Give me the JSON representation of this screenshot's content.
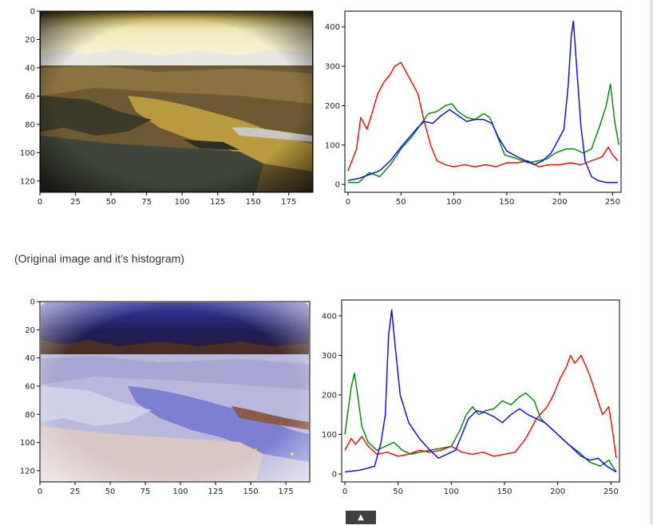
{
  "caption": "(Original image and it’s histogram)",
  "scroll_top_icon": "arrow-up-icon",
  "scroll_top_glyph": "▲",
  "chart_data": [
    {
      "type": "image",
      "image": "original-landscape",
      "x_ticks": [
        "0",
        "25",
        "50",
        "75",
        "100",
        "125",
        "150",
        "175"
      ],
      "y_ticks": [
        "0",
        "20",
        "40",
        "60",
        "80",
        "100",
        "120"
      ],
      "xlim": [
        0,
        192
      ],
      "ylim": [
        128,
        0
      ]
    },
    {
      "type": "line",
      "x_ticks": [
        "0",
        "50",
        "100",
        "150",
        "200",
        "250"
      ],
      "y_ticks": [
        "0",
        "100",
        "200",
        "300",
        "400"
      ],
      "xlim": [
        -3,
        258
      ],
      "ylim": [
        -20,
        440
      ],
      "series": [
        {
          "color": "#ff0000",
          "points": [
            [
              0,
              35
            ],
            [
              8,
              90
            ],
            [
              12,
              170
            ],
            [
              18,
              140
            ],
            [
              22,
              175
            ],
            [
              28,
              230
            ],
            [
              34,
              260
            ],
            [
              40,
              280
            ],
            [
              44,
              300
            ],
            [
              50,
              310
            ],
            [
              54,
              290
            ],
            [
              58,
              270
            ],
            [
              62,
              250
            ],
            [
              66,
              230
            ],
            [
              72,
              160
            ],
            [
              78,
              100
            ],
            [
              84,
              60
            ],
            [
              92,
              50
            ],
            [
              100,
              45
            ],
            [
              110,
              50
            ],
            [
              120,
              45
            ],
            [
              130,
              50
            ],
            [
              140,
              45
            ],
            [
              150,
              55
            ],
            [
              160,
              55
            ],
            [
              170,
              60
            ],
            [
              180,
              45
            ],
            [
              190,
              50
            ],
            [
              200,
              50
            ],
            [
              210,
              55
            ],
            [
              220,
              50
            ],
            [
              230,
              60
            ],
            [
              240,
              70
            ],
            [
              246,
              95
            ],
            [
              250,
              75
            ],
            [
              255,
              60
            ]
          ]
        },
        {
          "color": "#008000",
          "points": [
            [
              0,
              5
            ],
            [
              10,
              5
            ],
            [
              20,
              30
            ],
            [
              30,
              20
            ],
            [
              40,
              50
            ],
            [
              50,
              90
            ],
            [
              60,
              120
            ],
            [
              68,
              150
            ],
            [
              76,
              180
            ],
            [
              84,
              185
            ],
            [
              92,
              200
            ],
            [
              98,
              205
            ],
            [
              104,
              185
            ],
            [
              112,
              170
            ],
            [
              120,
              165
            ],
            [
              128,
              180
            ],
            [
              134,
              170
            ],
            [
              140,
              130
            ],
            [
              148,
              75
            ],
            [
              160,
              65
            ],
            [
              170,
              55
            ],
            [
              180,
              60
            ],
            [
              188,
              65
            ],
            [
              196,
              80
            ],
            [
              206,
              90
            ],
            [
              214,
              90
            ],
            [
              222,
              80
            ],
            [
              230,
              90
            ],
            [
              238,
              150
            ],
            [
              244,
              200
            ],
            [
              248,
              255
            ],
            [
              252,
              160
            ],
            [
              256,
              100
            ]
          ]
        },
        {
          "color": "#0000ff",
          "points": [
            [
              0,
              10
            ],
            [
              10,
              15
            ],
            [
              20,
              25
            ],
            [
              30,
              35
            ],
            [
              40,
              60
            ],
            [
              50,
              95
            ],
            [
              58,
              120
            ],
            [
              66,
              145
            ],
            [
              72,
              160
            ],
            [
              80,
              155
            ],
            [
              88,
              175
            ],
            [
              96,
              190
            ],
            [
              104,
              175
            ],
            [
              112,
              160
            ],
            [
              120,
              165
            ],
            [
              128,
              165
            ],
            [
              136,
              155
            ],
            [
              142,
              120
            ],
            [
              150,
              85
            ],
            [
              160,
              70
            ],
            [
              168,
              60
            ],
            [
              176,
              50
            ],
            [
              184,
              60
            ],
            [
              192,
              80
            ],
            [
              198,
              110
            ],
            [
              204,
              140
            ],
            [
              208,
              250
            ],
            [
              211,
              380
            ],
            [
              213,
              415
            ],
            [
              216,
              300
            ],
            [
              220,
              150
            ],
            [
              224,
              60
            ],
            [
              230,
              20
            ],
            [
              236,
              10
            ],
            [
              244,
              5
            ],
            [
              255,
              5
            ]
          ]
        }
      ]
    },
    {
      "type": "image",
      "image": "inverted-landscape",
      "x_ticks": [
        "0",
        "25",
        "50",
        "75",
        "100",
        "125",
        "150",
        "175"
      ],
      "y_ticks": [
        "0",
        "20",
        "40",
        "60",
        "80",
        "100",
        "120"
      ],
      "xlim": [
        0,
        192
      ],
      "ylim": [
        128,
        0
      ]
    },
    {
      "type": "line",
      "x_ticks": [
        "0",
        "50",
        "100",
        "150",
        "200",
        "250"
      ],
      "y_ticks": [
        "0",
        "100",
        "200",
        "300",
        "400"
      ],
      "xlim": [
        -3,
        258
      ],
      "ylim": [
        -20,
        440
      ],
      "series": [
        {
          "color": "#ff0000",
          "points": [
            [
              0,
              60
            ],
            [
              6,
              90
            ],
            [
              10,
              75
            ],
            [
              16,
              95
            ],
            [
              22,
              70
            ],
            [
              30,
              50
            ],
            [
              40,
              55
            ],
            [
              50,
              45
            ],
            [
              60,
              50
            ],
            [
              70,
              60
            ],
            [
              80,
              55
            ],
            [
              90,
              60
            ],
            [
              100,
              70
            ],
            [
              110,
              55
            ],
            [
              120,
              50
            ],
            [
              130,
              55
            ],
            [
              140,
              45
            ],
            [
              150,
              50
            ],
            [
              160,
              55
            ],
            [
              170,
              90
            ],
            [
              180,
              140
            ],
            [
              190,
              170
            ],
            [
              196,
              200
            ],
            [
              202,
              240
            ],
            [
              208,
              270
            ],
            [
              212,
              300
            ],
            [
              216,
              280
            ],
            [
              222,
              300
            ],
            [
              230,
              250
            ],
            [
              236,
              200
            ],
            [
              242,
              150
            ],
            [
              248,
              170
            ],
            [
              252,
              100
            ],
            [
              255,
              40
            ]
          ]
        },
        {
          "color": "#008000",
          "points": [
            [
              0,
              100
            ],
            [
              3,
              160
            ],
            [
              6,
              220
            ],
            [
              9,
              255
            ],
            [
              12,
              200
            ],
            [
              16,
              120
            ],
            [
              22,
              80
            ],
            [
              30,
              60
            ],
            [
              38,
              70
            ],
            [
              46,
              80
            ],
            [
              54,
              60
            ],
            [
              62,
              50
            ],
            [
              70,
              55
            ],
            [
              80,
              60
            ],
            [
              90,
              65
            ],
            [
              100,
              70
            ],
            [
              108,
              110
            ],
            [
              114,
              150
            ],
            [
              120,
              170
            ],
            [
              126,
              150
            ],
            [
              132,
              160
            ],
            [
              140,
              165
            ],
            [
              148,
              185
            ],
            [
              156,
              175
            ],
            [
              164,
              195
            ],
            [
              170,
              205
            ],
            [
              178,
              185
            ],
            [
              184,
              140
            ],
            [
              192,
              120
            ],
            [
              200,
              100
            ],
            [
              210,
              75
            ],
            [
              220,
              55
            ],
            [
              230,
              30
            ],
            [
              240,
              20
            ],
            [
              248,
              35
            ],
            [
              255,
              5
            ]
          ]
        },
        {
          "color": "#0000ff",
          "points": [
            [
              0,
              5
            ],
            [
              15,
              10
            ],
            [
              28,
              20
            ],
            [
              34,
              80
            ],
            [
              38,
              150
            ],
            [
              41,
              350
            ],
            [
              44,
              415
            ],
            [
              47,
              330
            ],
            [
              52,
              200
            ],
            [
              60,
              130
            ],
            [
              70,
              90
            ],
            [
              80,
              60
            ],
            [
              88,
              40
            ],
            [
              96,
              50
            ],
            [
              104,
              60
            ],
            [
              110,
              100
            ],
            [
              116,
              140
            ],
            [
              124,
              160
            ],
            [
              132,
              155
            ],
            [
              140,
              145
            ],
            [
              148,
              130
            ],
            [
              156,
              150
            ],
            [
              164,
              165
            ],
            [
              172,
              150
            ],
            [
              180,
              140
            ],
            [
              188,
              130
            ],
            [
              196,
              110
            ],
            [
              204,
              90
            ],
            [
              212,
              70
            ],
            [
              222,
              45
            ],
            [
              230,
              35
            ],
            [
              238,
              40
            ],
            [
              246,
              20
            ],
            [
              255,
              5
            ]
          ]
        }
      ]
    }
  ]
}
